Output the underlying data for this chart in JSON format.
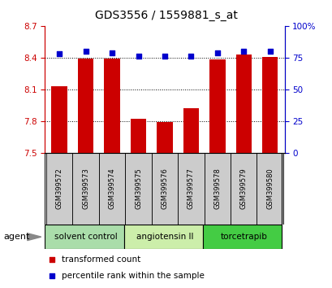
{
  "title": "GDS3556 / 1559881_s_at",
  "samples": [
    "GSM399572",
    "GSM399573",
    "GSM399574",
    "GSM399575",
    "GSM399576",
    "GSM399577",
    "GSM399578",
    "GSM399579",
    "GSM399580"
  ],
  "bar_values": [
    8.13,
    8.39,
    8.39,
    7.82,
    7.79,
    7.92,
    8.38,
    8.43,
    8.41
  ],
  "percentile_values": [
    78,
    80,
    79,
    76,
    76,
    76,
    79,
    80,
    80
  ],
  "y_min": 7.5,
  "y_max": 8.7,
  "y_ticks": [
    7.5,
    7.8,
    8.1,
    8.4,
    8.7
  ],
  "y2_ticks": [
    0,
    25,
    50,
    75,
    100
  ],
  "bar_color": "#cc0000",
  "dot_color": "#0000cc",
  "agent_groups": [
    {
      "label": "solvent control",
      "start": 0,
      "end": 3,
      "color": "#aaddaa"
    },
    {
      "label": "angiotensin II",
      "start": 3,
      "end": 6,
      "color": "#cceeaa"
    },
    {
      "label": "torcetrapib",
      "start": 6,
      "end": 9,
      "color": "#44cc44"
    }
  ],
  "agent_label": "agent",
  "legend_bar_label": "transformed count",
  "legend_dot_label": "percentile rank within the sample",
  "title_fontsize": 10,
  "tick_fontsize": 7.5,
  "sample_fontsize": 6.0,
  "agent_fontsize": 7.5,
  "legend_fontsize": 7.5
}
